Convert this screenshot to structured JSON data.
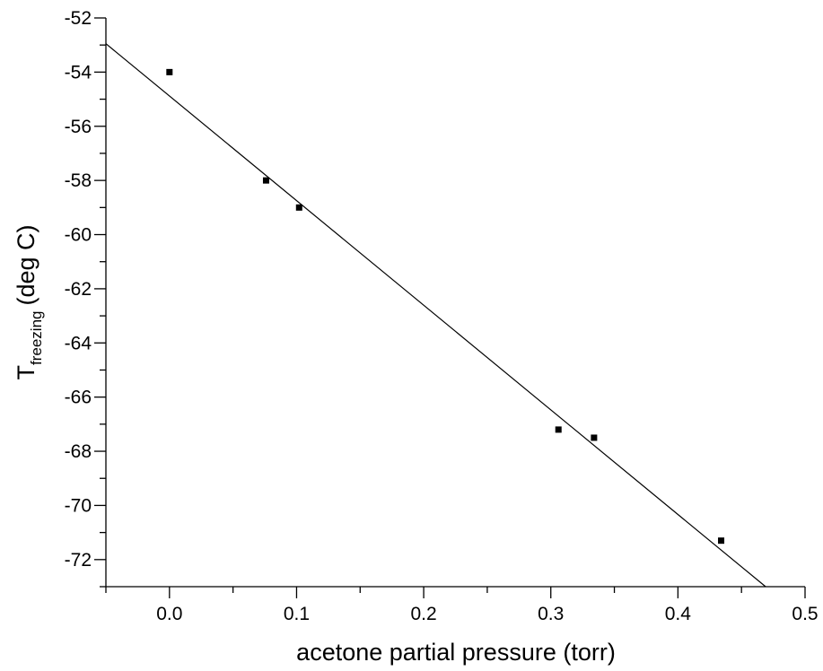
{
  "chart_data": {
    "type": "scatter",
    "title": "",
    "xlabel": "acetone partial pressure (torr)",
    "ylabel": {
      "main": "T",
      "subscript": "freezing",
      "suffix": "(deg C)"
    },
    "xlim": [
      -0.05,
      0.5
    ],
    "ylim": [
      -73,
      -52
    ],
    "x_ticks": [
      0.0,
      0.1,
      0.2,
      0.3,
      0.4,
      0.5
    ],
    "x_tick_labels": [
      "0.0",
      "0.1",
      "0.2",
      "0.3",
      "0.4",
      "0.5"
    ],
    "y_ticks": [
      -52,
      -54,
      -56,
      -58,
      -60,
      -62,
      -64,
      -66,
      -68,
      -70,
      -72
    ],
    "y_tick_labels": [
      "-52",
      "-54",
      "-56",
      "-58",
      "-60",
      "-62",
      "-64",
      "-66",
      "-68",
      "-70",
      "-72"
    ],
    "grid": false,
    "series": [
      {
        "type": "scatter",
        "points": [
          {
            "x": 0.0,
            "y": -54.0
          },
          {
            "x": 0.076,
            "y": -58.0
          },
          {
            "x": 0.102,
            "y": -59.0
          },
          {
            "x": 0.306,
            "y": -67.2
          },
          {
            "x": 0.334,
            "y": -67.5
          },
          {
            "x": 0.434,
            "y": -71.3
          }
        ]
      },
      {
        "type": "line",
        "points": [
          {
            "x": -0.05,
            "y": -52.95
          },
          {
            "x": 0.469,
            "y": -73.0
          }
        ]
      }
    ],
    "colors": {
      "marks": "#000000",
      "background": "#ffffff"
    }
  }
}
